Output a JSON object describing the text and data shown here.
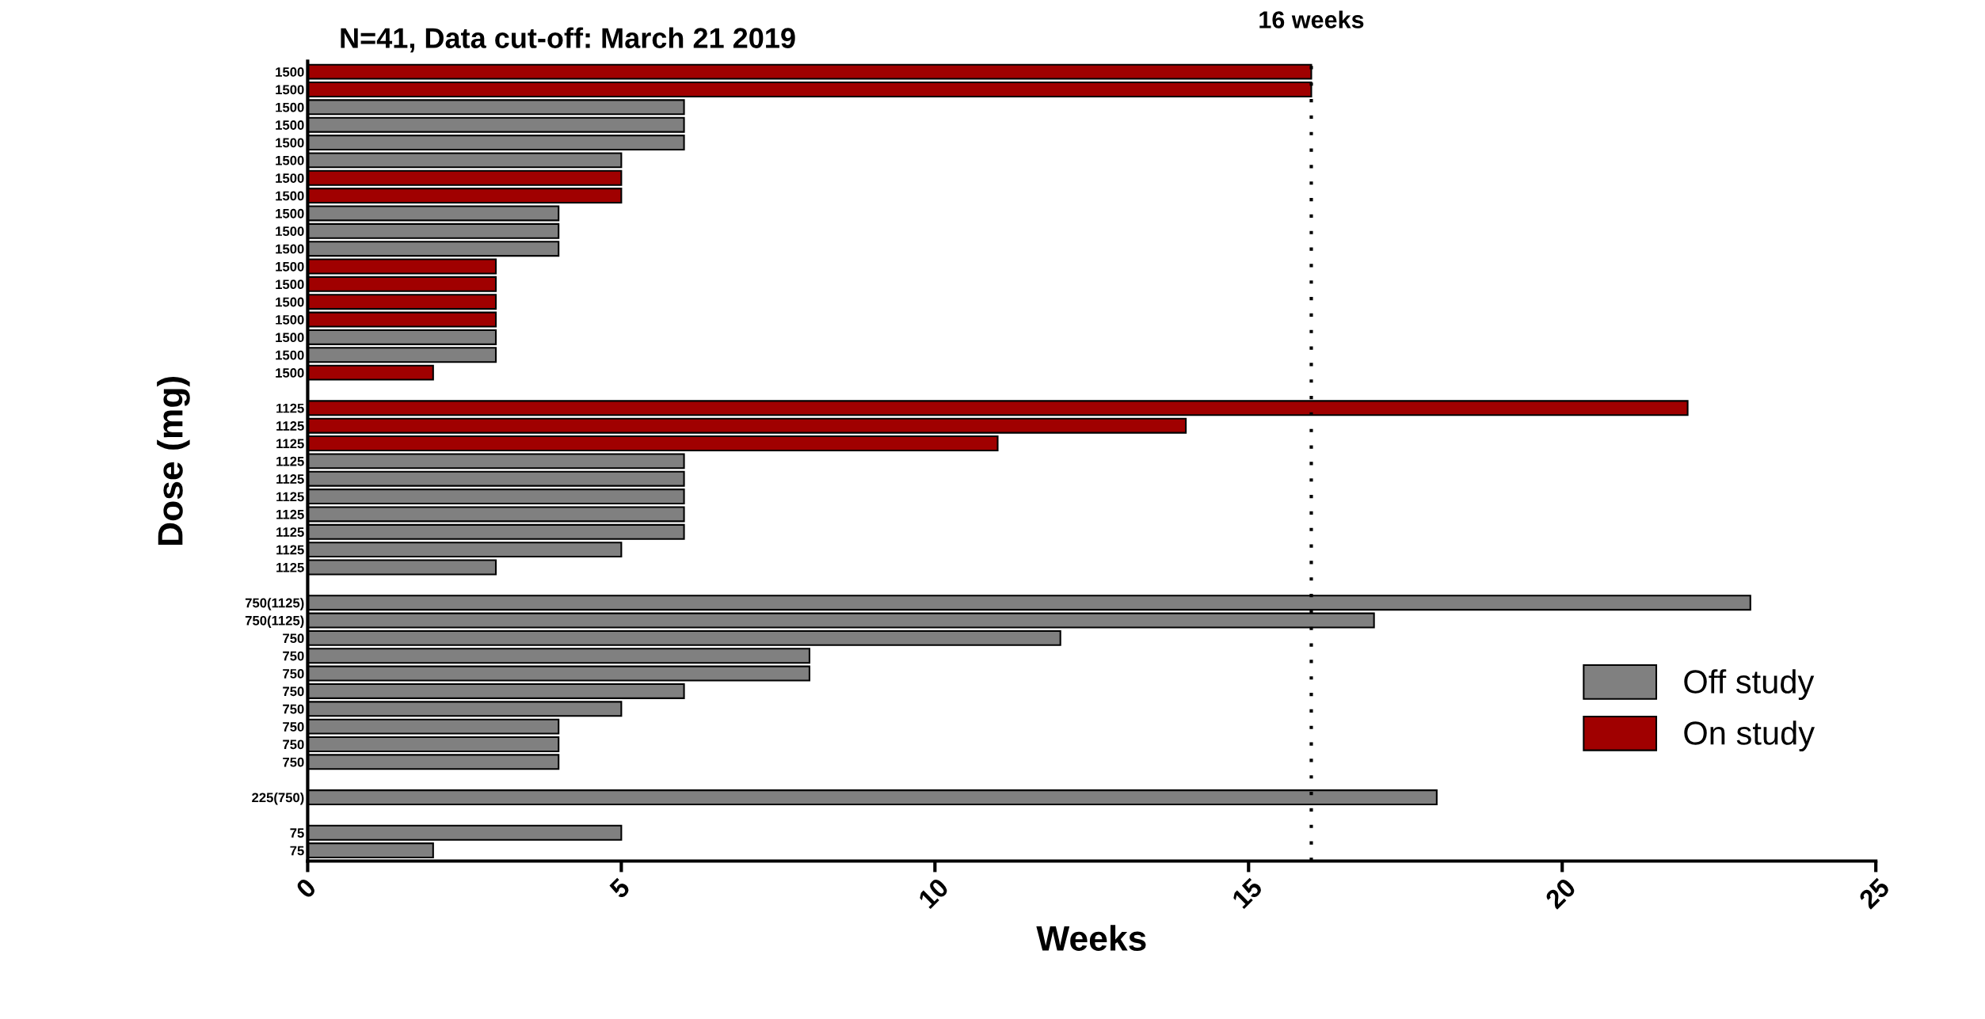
{
  "chart_data": {
    "type": "bar",
    "orientation": "horizontal",
    "title": "N=41, Data cut-off: March 21 2019",
    "xlabel": "Weeks",
    "ylabel": "Dose (mg)",
    "categories": [
      "1500",
      "1500",
      "1500",
      "1500",
      "1500",
      "1500",
      "1500",
      "1500",
      "1500",
      "1500",
      "1500",
      "1500",
      "1500",
      "1500",
      "1500",
      "1500",
      "1500",
      "1500",
      null,
      "1125",
      "1125",
      "1125",
      "1125",
      "1125",
      "1125",
      "1125",
      "1125",
      "1125",
      "1125",
      null,
      "750(1125)",
      "750(1125)",
      "750",
      "750",
      "750",
      "750",
      "750",
      "750",
      "750",
      "750",
      null,
      "225(750)",
      null,
      "75",
      "75"
    ],
    "series": [
      {
        "name": "Off study",
        "color": "#808080",
        "values": [
          null,
          null,
          6,
          6,
          6,
          5,
          null,
          null,
          4,
          4,
          4,
          null,
          null,
          null,
          null,
          3,
          3,
          null,
          null,
          null,
          null,
          null,
          6,
          6,
          6,
          6,
          6,
          5,
          3,
          null,
          23,
          17,
          12,
          8,
          8,
          6,
          5,
          4,
          4,
          4,
          null,
          18,
          null,
          5,
          2
        ]
      },
      {
        "name": "On study",
        "color": "#a00000",
        "values": [
          16,
          16,
          null,
          null,
          null,
          null,
          5,
          5,
          null,
          null,
          null,
          3,
          3,
          3,
          3,
          null,
          null,
          2,
          null,
          22,
          14,
          11,
          null,
          null,
          null,
          null,
          null,
          null,
          null,
          null,
          null,
          null,
          null,
          null,
          null,
          null,
          null,
          null,
          null,
          null,
          null,
          null,
          null,
          null,
          null
        ]
      }
    ],
    "xlim": [
      0,
      25
    ],
    "xticks": [
      0,
      5,
      10,
      15,
      20,
      25
    ],
    "ref_lines": [
      {
        "axis": "x",
        "value": 16,
        "label": "16 weeks",
        "line_style": "dotted",
        "color": "#000000"
      }
    ],
    "legend": "bottom right",
    "grid": false
  }
}
